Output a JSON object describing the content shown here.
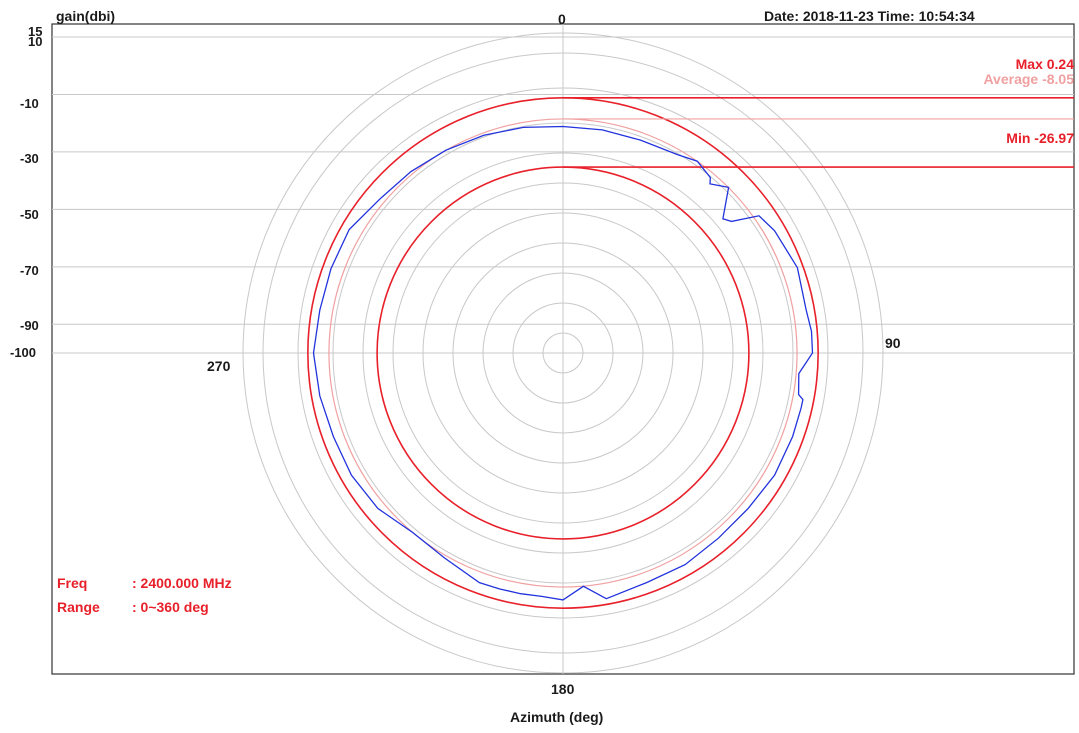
{
  "header": {
    "y_unit_label": "gain(dbi)",
    "top_angle_label": "0",
    "datetime": "Date: 2018-11-23  Time: 10:54:34"
  },
  "info": {
    "freq_label": "Freq",
    "freq_value": ": 2400.000 MHz",
    "range_label": "Range",
    "range_value": ": 0~360 deg"
  },
  "colors": {
    "trace": "#2233dd",
    "marker_red": "#e8202a",
    "marker_pink": "#f0a0a0",
    "grid": "#c8c8c8",
    "axis_text": "#1a1a1a"
  },
  "chart_data": {
    "type": "line",
    "subtype": "polar",
    "title": "",
    "xlabel": "Azimuth (deg)",
    "ylabel": "gain(dbi)",
    "radial_axis": {
      "range": [
        -100,
        15
      ],
      "tick_labels": [
        "15",
        "10",
        "-10",
        "-30",
        "-50",
        "-70",
        "-90",
        "-100"
      ],
      "tick_values": [
        15,
        10,
        -10,
        -30,
        -50,
        -70,
        -90,
        -100
      ]
    },
    "angular_axis": {
      "tick_labels": [
        "0",
        "90",
        "180",
        "270"
      ],
      "tick_values": [
        0,
        90,
        180,
        270
      ],
      "direction": "clockwise",
      "zero_location": "top"
    },
    "grid": true,
    "reference_lines": [
      {
        "name": "Max",
        "label": "Max 0.24",
        "value": 0.24,
        "color": "#e8202a"
      },
      {
        "name": "Average",
        "label": "Average -8.05",
        "value": -8.05,
        "color": "#f0a0a0"
      },
      {
        "name": "Min",
        "label": "Min -26.97",
        "value": -26.97,
        "color": "#e8202a"
      }
    ],
    "series": [
      {
        "color": "#2233dd",
        "theta_deg": [
          0,
          10,
          20,
          30,
          35,
          40,
          41,
          45,
          50,
          52,
          55,
          60,
          70,
          80,
          85,
          90,
          95,
          100,
          101,
          103,
          110,
          120,
          130,
          140,
          150,
          160,
          170,
          175,
          180,
          185,
          190,
          195,
          200,
          210,
          220,
          230,
          240,
          250,
          260,
          270,
          280,
          290,
          300,
          310,
          320,
          330,
          340,
          350,
          360
        ],
        "r_dbi": [
          -11,
          -11,
          -11,
          -10,
          -8,
          -10,
          -12,
          -8,
          -18,
          -16,
          -6,
          -4,
          -2,
          -3,
          -2,
          -2,
          -7,
          -6,
          -4,
          -4,
          -4,
          -4,
          -5,
          -5,
          -4,
          -4,
          -2,
          -8,
          -3,
          -4,
          -4,
          -4,
          -4,
          -7,
          -8,
          -5,
          -4,
          -4,
          -3,
          -2,
          -3,
          -3,
          -3,
          -6,
          -7,
          -8,
          -9,
          -10,
          -11
        ]
      }
    ]
  }
}
